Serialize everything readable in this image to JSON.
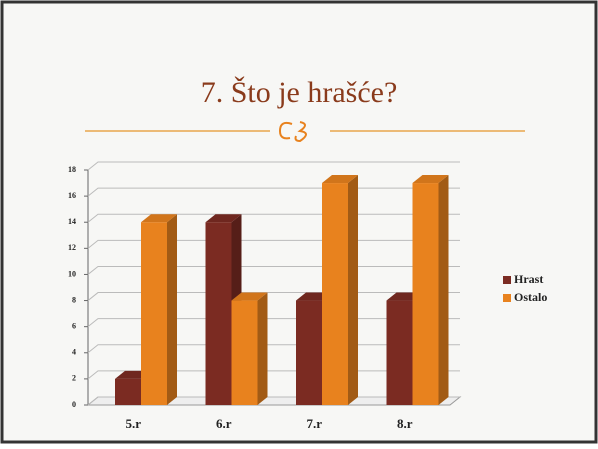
{
  "chart_data": {
    "type": "bar",
    "title": "7. Što je hrašće?",
    "categories": [
      "5.r",
      "6.r",
      "7.r",
      "8.r"
    ],
    "series": [
      {
        "name": "Hrast",
        "color": "#7b2b22",
        "values": [
          2,
          14,
          8,
          8
        ]
      },
      {
        "name": "Ostalo",
        "color": "#e8821e",
        "values": [
          14,
          8,
          17,
          17
        ]
      }
    ],
    "ylim": [
      0,
      18
    ],
    "yticks": [
      0,
      2,
      4,
      6,
      8,
      10,
      12,
      14,
      16,
      18
    ],
    "grid": true,
    "legend": "right"
  }
}
